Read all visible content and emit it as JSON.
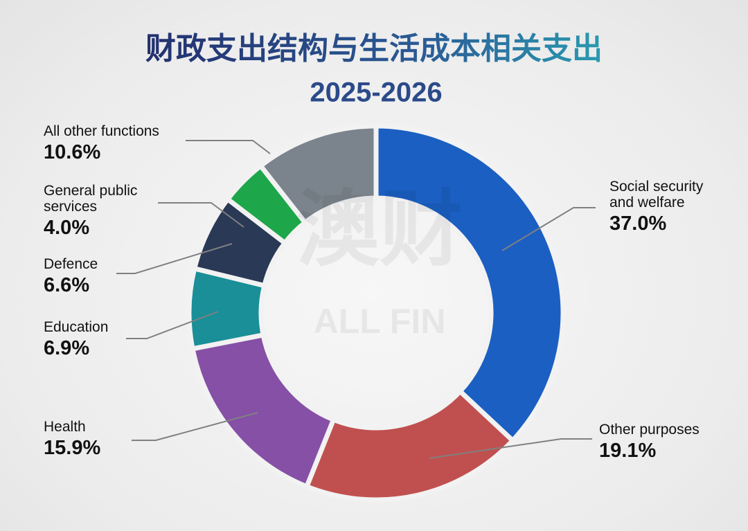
{
  "chart_data": {
    "type": "donut",
    "title": "财政支出结构与生活成本相关支出",
    "subtitle": "2025-2026",
    "categories": [
      "Social security and welfare",
      "Other purposes",
      "Health",
      "Education",
      "Defence",
      "General public services",
      "All other functions"
    ],
    "values": [
      37.0,
      19.1,
      15.9,
      6.9,
      6.6,
      4.0,
      10.6
    ],
    "value_labels": [
      "37.0%",
      "19.1%",
      "15.9%",
      "6.9%",
      "6.6%",
      "4.0%",
      "10.6%"
    ],
    "colors": [
      "#1b5fc2",
      "#c0504f",
      "#8650a6",
      "#1a8f98",
      "#293956",
      "#1ea64a",
      "#7b838c"
    ],
    "watermark": [
      "澳财",
      "ALL FIN"
    ]
  }
}
